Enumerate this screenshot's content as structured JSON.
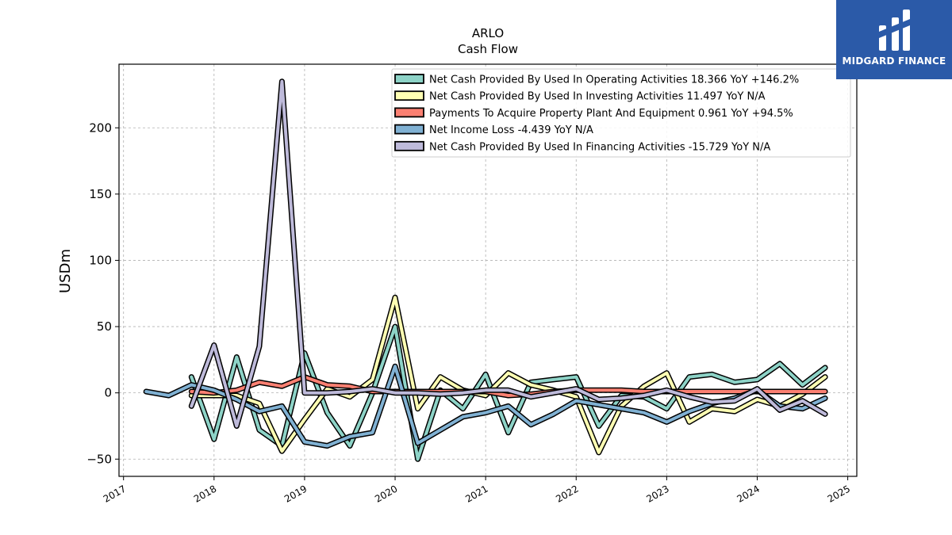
{
  "logo": {
    "text": "MIDGARD FINANCE"
  },
  "chart_data": {
    "type": "line",
    "title": "ARLO",
    "subtitle": "Cash Flow",
    "xlabel": "",
    "ylabel": "USDm",
    "xlim": [
      2016.95,
      2025.1
    ],
    "ylim": [
      -63,
      248
    ],
    "xticks": [
      2017,
      2018,
      2019,
      2020,
      2021,
      2022,
      2023,
      2024,
      2025
    ],
    "yticks": [
      -50,
      0,
      50,
      100,
      150,
      200
    ],
    "grid": true,
    "legend_position": "top-right",
    "series": [
      {
        "name": "Net Cash Provided By Used In Operating Activities  18.366 YoY +146.2%",
        "color": "#8dd3c7",
        "x": [
          2017.75,
          2018.0,
          2018.25,
          2018.5,
          2018.75,
          2019.0,
          2019.25,
          2019.5,
          2019.75,
          2020.0,
          2020.25,
          2020.5,
          2020.75,
          2021.0,
          2021.25,
          2021.5,
          2021.75,
          2022.0,
          2022.25,
          2022.5,
          2022.75,
          2023.0,
          2023.25,
          2023.5,
          2023.75,
          2024.0,
          2024.25,
          2024.5,
          2024.75
        ],
        "y": [
          12,
          -35,
          27,
          -28,
          -40,
          30,
          -15,
          -40,
          0,
          50,
          -50,
          2,
          -12,
          14,
          -30,
          8,
          10,
          12,
          -25,
          -2,
          -3,
          -12,
          12,
          14,
          8,
          10,
          22,
          6,
          19
        ]
      },
      {
        "name": "Net Cash Provided By Used In Investing Activities  11.497 YoY N/A",
        "color": "#ffffb3",
        "x": [
          2017.75,
          2018.0,
          2018.25,
          2018.5,
          2018.75,
          2019.0,
          2019.25,
          2019.5,
          2019.75,
          2020.0,
          2020.25,
          2020.5,
          2020.75,
          2021.0,
          2021.25,
          2021.5,
          2021.75,
          2022.0,
          2022.25,
          2022.5,
          2022.75,
          2023.0,
          2023.25,
          2023.5,
          2023.75,
          2024.0,
          2024.25,
          2024.5,
          2024.75
        ],
        "y": [
          -2,
          -2,
          -2,
          -8,
          -44,
          -20,
          3,
          -3,
          10,
          72,
          -12,
          12,
          2,
          -2,
          15,
          6,
          2,
          -3,
          -45,
          -10,
          5,
          15,
          -22,
          -12,
          -14,
          -5,
          -10,
          -1,
          12
        ]
      },
      {
        "name": "Payments To Acquire Property Plant And Equipment  0.961 YoY +94.5%",
        "color": "#fb8072",
        "x": [
          2017.75,
          2018.0,
          2018.25,
          2018.5,
          2018.75,
          2019.0,
          2019.25,
          2019.5,
          2019.75,
          2020.0,
          2020.25,
          2020.5,
          2020.75,
          2021.0,
          2021.25,
          2021.5,
          2021.75,
          2022.0,
          2022.25,
          2022.5,
          2022.75,
          2023.0,
          2023.25,
          2023.5,
          2023.75,
          2024.0,
          2024.25,
          2024.5,
          2024.75
        ],
        "y": [
          1,
          0,
          2,
          8,
          5,
          12,
          6,
          5,
          1,
          1,
          1,
          1,
          1,
          1,
          -2,
          -1,
          1,
          2,
          2,
          2,
          1,
          1,
          1,
          1,
          1,
          1,
          1,
          1,
          1
        ]
      },
      {
        "name": "Net Income Loss  -4.439 YoY N/A",
        "color": "#80b1d3",
        "x": [
          2017.25,
          2017.5,
          2017.75,
          2018.0,
          2018.25,
          2018.5,
          2018.75,
          2019.0,
          2019.25,
          2019.5,
          2019.75,
          2020.0,
          2020.25,
          2020.5,
          2020.75,
          2021.0,
          2021.25,
          2021.5,
          2021.75,
          2022.0,
          2022.25,
          2022.5,
          2022.75,
          2023.0,
          2023.25,
          2023.5,
          2023.75,
          2024.0,
          2024.25,
          2024.5,
          2024.75
        ],
        "y": [
          1,
          -2,
          6,
          2,
          -5,
          -14,
          -10,
          -37,
          -40,
          -33,
          -30,
          20,
          -38,
          -28,
          -18,
          -15,
          -10,
          -24,
          -16,
          -6,
          -9,
          -12,
          -15,
          -22,
          -14,
          -8,
          -4,
          2,
          -10,
          -12,
          -4
        ]
      },
      {
        "name": "Net Cash Provided By Used In Financing Activities  -15.729 YoY N/A",
        "color": "#bebada",
        "x": [
          2017.75,
          2018.0,
          2018.25,
          2018.5,
          2018.75,
          2019.0,
          2019.25,
          2019.5,
          2019.75,
          2020.0,
          2020.25,
          2020.5,
          2020.75,
          2021.0,
          2021.25,
          2021.5,
          2021.75,
          2022.0,
          2022.25,
          2022.5,
          2022.75,
          2023.0,
          2023.25,
          2023.5,
          2023.75,
          2024.0,
          2024.25,
          2024.5,
          2024.75
        ],
        "y": [
          -10,
          36,
          -25,
          35,
          235,
          0,
          0,
          1,
          3,
          0,
          0,
          -1,
          0,
          2,
          2,
          -3,
          0,
          3,
          -5,
          -4,
          -2,
          2,
          -3,
          -7,
          -6,
          3,
          -13,
          -6,
          -16
        ]
      }
    ]
  }
}
